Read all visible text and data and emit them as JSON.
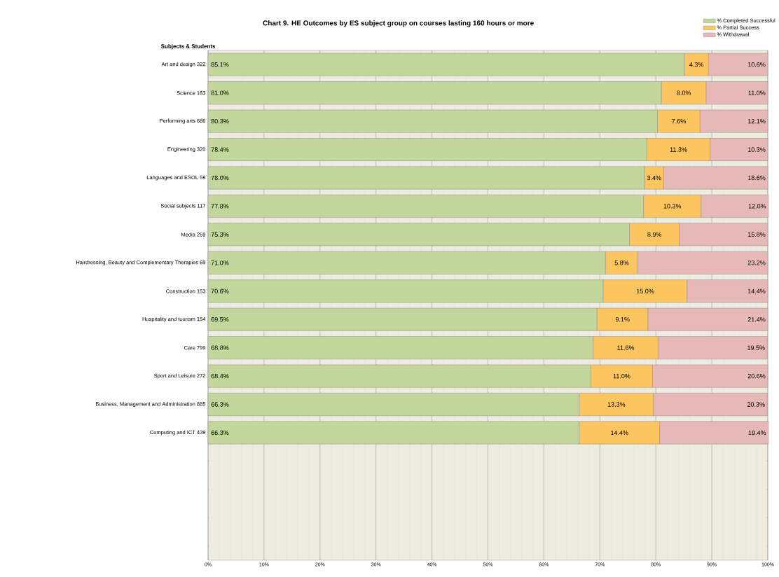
{
  "chart_data": {
    "type": "bar",
    "orientation": "horizontal",
    "stacked": true,
    "title": "Chart 9. HE Outcomes by ES subject group on courses lasting 160 hours or more",
    "ylabel": "Subjects & Students",
    "categories": [
      "Art and design  322",
      "Science  163",
      "Performing arts  686",
      "Engineering  320",
      "Languages and ESOL  59",
      "Social subjects  117",
      "Media  259",
      "Hairdressing, Beauty and Complementary Therapies  69",
      "Construction  153",
      "Hospitality and tourism  154",
      "Care  799",
      "Sport and Leisure  272",
      "Business, Management and Administration  885",
      "Computing and ICT  439",
      null,
      null,
      null,
      null
    ],
    "series": [
      {
        "name": "% Completed Successful",
        "color": "#c3d69b",
        "values": [
          85.1,
          81.0,
          80.3,
          78.4,
          78.0,
          77.8,
          75.3,
          71.0,
          70.6,
          69.5,
          68.8,
          68.4,
          66.3,
          66.3,
          null,
          null,
          null,
          null
        ],
        "value_labels": [
          "85.1%",
          "81.0%",
          "80.3%",
          "78.4%",
          "78.0%",
          "77.8%",
          "75.3%",
          "71.0%",
          "70.6%",
          "69.5%",
          "68.8%",
          "68.4%",
          "66.3%",
          "66.3%",
          null,
          null,
          null,
          null
        ]
      },
      {
        "name": "% Partial Success",
        "color": "#fcc55f",
        "values": [
          4.3,
          8.0,
          7.6,
          11.3,
          3.4,
          10.3,
          8.9,
          5.8,
          15.0,
          9.1,
          11.6,
          11.0,
          13.3,
          14.4,
          null,
          null,
          null,
          null
        ],
        "value_labels": [
          "4.3%",
          "8.0%",
          "7.6%",
          "11.3%",
          "3.4%",
          "10.3%",
          "8.9%",
          "5.8%",
          "15.0%",
          "9.1%",
          "11.6%",
          "11.0%",
          "13.3%",
          "14.4%",
          null,
          null,
          null,
          null
        ]
      },
      {
        "name": "% Withdrawal",
        "color": "#e6b9b8",
        "values": [
          10.6,
          11.0,
          12.1,
          10.3,
          18.6,
          12.0,
          15.8,
          23.2,
          14.4,
          21.4,
          19.5,
          20.6,
          20.3,
          19.4,
          null,
          null,
          null,
          null
        ],
        "value_labels": [
          "10.6%",
          "11.0%",
          "12.1%",
          "10.3%",
          "18.6%",
          "12.0%",
          "15.8%",
          "23.2%",
          "14.4%",
          "21.4%",
          "19.5%",
          "20.6%",
          "20.3%",
          "19.4%",
          null,
          null,
          null,
          null
        ]
      }
    ],
    "xlim": [
      0,
      100
    ],
    "xticks": [
      {
        "value": 0,
        "label": "0%"
      },
      {
        "value": 10,
        "label": "10%"
      },
      {
        "value": 20,
        "label": "20%"
      },
      {
        "value": 30,
        "label": "30%"
      },
      {
        "value": 40,
        "label": "40%"
      },
      {
        "value": 50,
        "label": "50%"
      },
      {
        "value": 60,
        "label": "60%"
      },
      {
        "value": 70,
        "label": "70%"
      },
      {
        "value": 80,
        "label": "80%"
      },
      {
        "value": 90,
        "label": "90%"
      },
      {
        "value": 100,
        "label": "100%"
      }
    ],
    "grid": "x",
    "legend": "top right"
  }
}
